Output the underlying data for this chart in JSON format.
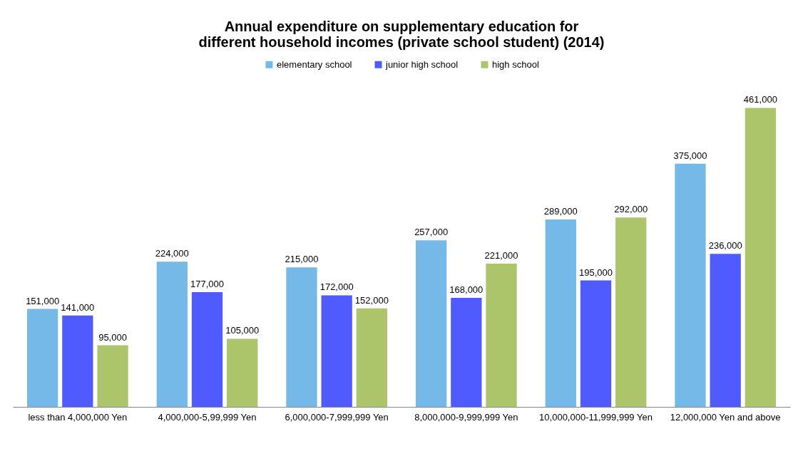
{
  "chart_data": {
    "type": "bar",
    "title": "Annual expenditure on supplementary education for different household incomes (private school student) (2014)",
    "categories": [
      "less than 4,000,000 Yen",
      "4,000,000-5,99,999 Yen",
      "6,000,000-7,999,999 Yen",
      "8,000,000-9,999,999 Yen",
      "10,000,000-11,999,999 Yen",
      "12,000,000 Yen and above"
    ],
    "series": [
      {
        "name": "elementary school",
        "color": "#74b9e8",
        "values": [
          151000,
          224000,
          215000,
          257000,
          289000,
          375000
        ],
        "value_labels": [
          "151,000",
          "224,000",
          "215,000",
          "257,000",
          "289,000",
          "375,000"
        ]
      },
      {
        "name": "junior high school",
        "color": "#4f5bff",
        "values": [
          141000,
          177000,
          172000,
          168000,
          195000,
          236000
        ],
        "value_labels": [
          "141,000",
          "177,000",
          "172,000",
          "168,000",
          "195,000",
          "236,000"
        ]
      },
      {
        "name": "high school",
        "color": "#acc46a",
        "values": [
          95000,
          105000,
          152000,
          221000,
          292000,
          461000
        ],
        "value_labels": [
          "95,000",
          "105,000",
          "152,000",
          "221,000",
          "292,000",
          "461,000"
        ]
      }
    ],
    "legend": "top"
  }
}
